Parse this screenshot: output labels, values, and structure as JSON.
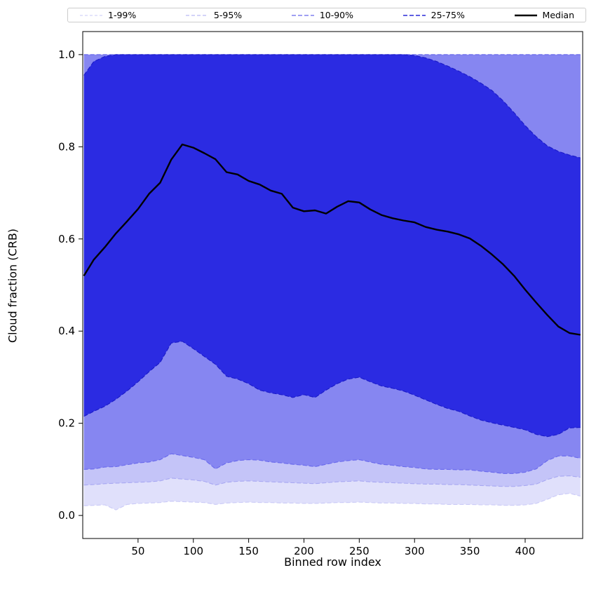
{
  "chart_data": {
    "type": "area",
    "title": "",
    "xlabel": "Binned row index",
    "ylabel": "Cloud fraction (CRB)",
    "xlim": [
      0,
      452
    ],
    "ylim": [
      -0.05,
      1.05
    ],
    "xticks": [
      50,
      100,
      150,
      200,
      250,
      300,
      350,
      400
    ],
    "yticks": [
      0.0,
      0.2,
      0.4,
      0.6,
      0.8,
      1.0
    ],
    "grid": false,
    "legend_position": "top",
    "x": [
      1,
      10,
      20,
      30,
      40,
      50,
      60,
      70,
      80,
      90,
      100,
      110,
      120,
      130,
      140,
      150,
      160,
      170,
      180,
      190,
      200,
      210,
      220,
      230,
      240,
      250,
      260,
      270,
      280,
      290,
      300,
      310,
      320,
      330,
      340,
      350,
      360,
      370,
      380,
      390,
      400,
      410,
      420,
      430,
      440,
      450
    ],
    "bands": [
      {
        "name": "1-99%",
        "color": "#e0e0fb",
        "edge": "#cacaf7",
        "low": [
          0.021,
          0.022,
          0.023,
          0.012,
          0.024,
          0.026,
          0.027,
          0.028,
          0.031,
          0.03,
          0.029,
          0.028,
          0.024,
          0.027,
          0.028,
          0.029,
          0.028,
          0.028,
          0.027,
          0.027,
          0.026,
          0.026,
          0.027,
          0.028,
          0.028,
          0.029,
          0.028,
          0.027,
          0.027,
          0.026,
          0.026,
          0.025,
          0.025,
          0.024,
          0.024,
          0.024,
          0.023,
          0.023,
          0.022,
          0.022,
          0.023,
          0.026,
          0.035,
          0.045,
          0.048,
          0.042
        ],
        "high": 1.0
      },
      {
        "name": "5-95%",
        "color": "#c4c4f8",
        "edge": "#a8a8f2",
        "low": [
          0.066,
          0.067,
          0.069,
          0.07,
          0.071,
          0.072,
          0.073,
          0.075,
          0.081,
          0.079,
          0.077,
          0.074,
          0.066,
          0.072,
          0.074,
          0.075,
          0.074,
          0.073,
          0.072,
          0.071,
          0.07,
          0.069,
          0.071,
          0.073,
          0.074,
          0.075,
          0.073,
          0.072,
          0.071,
          0.07,
          0.069,
          0.068,
          0.068,
          0.067,
          0.067,
          0.066,
          0.065,
          0.064,
          0.063,
          0.063,
          0.065,
          0.068,
          0.078,
          0.085,
          0.086,
          0.083
        ],
        "high": 1.0
      },
      {
        "name": "10-90%",
        "color": "#8686f1",
        "edge": "#6868ec",
        "low": [
          0.1,
          0.101,
          0.105,
          0.106,
          0.11,
          0.114,
          0.116,
          0.121,
          0.134,
          0.13,
          0.126,
          0.121,
          0.101,
          0.114,
          0.119,
          0.121,
          0.12,
          0.116,
          0.114,
          0.111,
          0.109,
          0.106,
          0.111,
          0.116,
          0.119,
          0.121,
          0.116,
          0.111,
          0.109,
          0.106,
          0.104,
          0.101,
          0.1,
          0.1,
          0.099,
          0.099,
          0.096,
          0.094,
          0.091,
          0.091,
          0.094,
          0.101,
          0.119,
          0.129,
          0.129,
          0.124
        ],
        "high": 1.0
      },
      {
        "name": "25-75%",
        "color": "#2b2be2",
        "edge": "#1a1ac8",
        "low": [
          0.215,
          0.226,
          0.237,
          0.252,
          0.27,
          0.29,
          0.312,
          0.332,
          0.374,
          0.378,
          0.362,
          0.345,
          0.328,
          0.302,
          0.296,
          0.286,
          0.272,
          0.266,
          0.262,
          0.256,
          0.262,
          0.256,
          0.272,
          0.286,
          0.296,
          0.3,
          0.29,
          0.281,
          0.276,
          0.27,
          0.261,
          0.251,
          0.241,
          0.232,
          0.226,
          0.216,
          0.207,
          0.201,
          0.196,
          0.191,
          0.186,
          0.176,
          0.171,
          0.176,
          0.19,
          0.191
        ],
        "high": [
          0.955,
          0.985,
          0.996,
          1.0,
          1.0,
          1.0,
          1.0,
          1.0,
          1.0,
          1.0,
          1.0,
          1.0,
          1.0,
          1.0,
          1.0,
          1.0,
          1.0,
          1.0,
          1.0,
          1.0,
          1.0,
          1.0,
          1.0,
          1.0,
          1.0,
          1.0,
          1.0,
          1.0,
          1.0,
          1.0,
          0.998,
          0.993,
          0.985,
          0.975,
          0.964,
          0.952,
          0.938,
          0.922,
          0.9,
          0.874,
          0.846,
          0.822,
          0.802,
          0.79,
          0.782,
          0.776
        ]
      }
    ],
    "median": {
      "name": "Median",
      "color": "#000000",
      "values": [
        0.52,
        0.555,
        0.582,
        0.612,
        0.638,
        0.665,
        0.698,
        0.722,
        0.772,
        0.805,
        0.798,
        0.786,
        0.773,
        0.745,
        0.74,
        0.726,
        0.718,
        0.705,
        0.698,
        0.668,
        0.66,
        0.662,
        0.655,
        0.67,
        0.682,
        0.679,
        0.664,
        0.652,
        0.645,
        0.64,
        0.636,
        0.626,
        0.62,
        0.616,
        0.61,
        0.601,
        0.585,
        0.566,
        0.545,
        0.52,
        0.49,
        0.462,
        0.435,
        0.41,
        0.396,
        0.392
      ]
    }
  },
  "legend": {
    "items": [
      {
        "label": "1-99%",
        "color": "#cacaf7",
        "dash": "4 3",
        "width": 1
      },
      {
        "label": "5-95%",
        "color": "#a8a8f2",
        "dash": "5 3",
        "width": 1
      },
      {
        "label": "10-90%",
        "color": "#6868ec",
        "dash": "6 3",
        "width": 1.3
      },
      {
        "label": "25-75%",
        "color": "#2a2ad8",
        "dash": "6 3",
        "width": 1.6
      },
      {
        "label": "Median",
        "color": "#000000",
        "dash": "",
        "width": 2.5
      }
    ]
  }
}
